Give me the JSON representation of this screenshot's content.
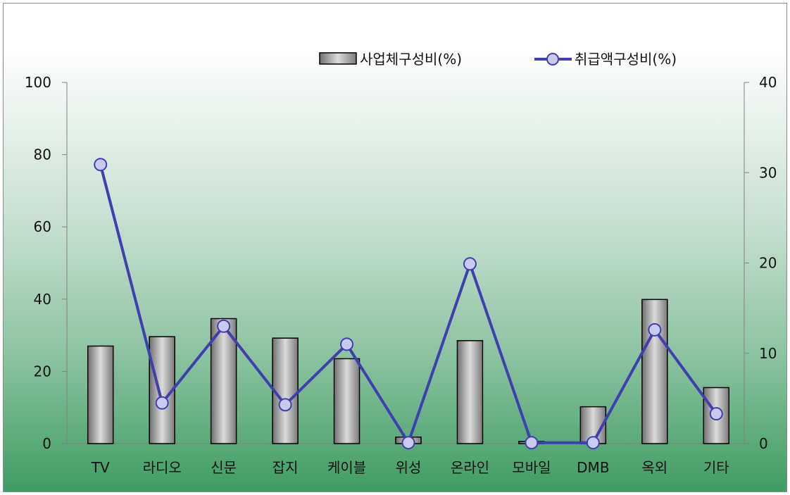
{
  "chart_data": {
    "type": "bar",
    "categories": [
      "TV",
      "라디오",
      "신문",
      "잡지",
      "케이블",
      "위성",
      "온라인",
      "모바일",
      "DMB",
      "옥외",
      "기타"
    ],
    "series": [
      {
        "name": "사업체구성비(%)",
        "type": "bar",
        "axis": "left",
        "values": [
          27.0,
          29.6,
          34.6,
          29.2,
          23.5,
          1.8,
          28.5,
          0.6,
          10.2,
          39.9,
          15.5
        ],
        "color": "#a9a9a9"
      },
      {
        "name": "취급액구성비(%)",
        "type": "line",
        "axis": "right",
        "values": [
          30.9,
          4.5,
          13.0,
          4.3,
          11.0,
          0.1,
          19.9,
          0.1,
          0.1,
          12.6,
          3.3
        ],
        "color": "#3f3fb0",
        "marker_color": "#c8caf0"
      }
    ],
    "y_left": {
      "ylim": [
        0,
        100
      ],
      "ticks": [
        0,
        20,
        40,
        60,
        80,
        100
      ]
    },
    "y_right": {
      "ylim": [
        0,
        40
      ],
      "ticks": [
        0,
        10,
        20,
        30,
        40
      ]
    },
    "legend": {
      "placement": "top"
    },
    "grid": false
  }
}
